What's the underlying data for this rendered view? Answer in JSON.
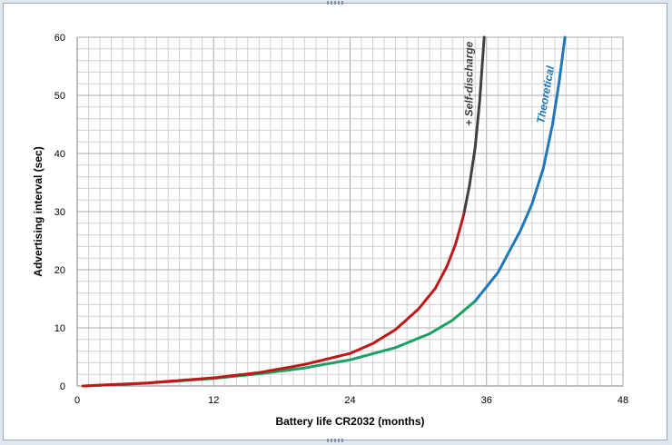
{
  "chart_data": {
    "type": "line",
    "title": "",
    "xlabel": "Battery life CR2032  (months)",
    "ylabel": "Advertising interval (sec)",
    "xlim": [
      0,
      48
    ],
    "ylim": [
      0,
      60
    ],
    "x_ticks": [
      "0",
      "12",
      "24",
      "36",
      "48"
    ],
    "y_ticks": [
      "0",
      "10",
      "20",
      "30",
      "40",
      "50",
      "60"
    ],
    "x_minor_step": 1,
    "y_minor_step": 2,
    "grid": true,
    "legend": "none",
    "colors": {
      "theoretical": "#1f78b8",
      "low": "#1aa060",
      "self_low": "#c01818",
      "self_high": "#404040",
      "grid_major": "#a8a8a8",
      "grid_minor": "#cfcfcf"
    },
    "series": [
      {
        "name": "Theoretical",
        "points": [
          [
            0.5,
            0
          ],
          [
            6,
            0.45
          ],
          [
            12,
            1.3
          ],
          [
            16,
            2.1
          ],
          [
            20,
            3.1
          ],
          [
            24,
            4.5
          ],
          [
            28,
            6.6
          ],
          [
            31,
            9.0
          ],
          [
            33,
            11.3
          ],
          [
            35,
            14.6
          ],
          [
            37,
            19.5
          ],
          [
            39,
            26.8
          ],
          [
            40,
            31.3
          ],
          [
            41,
            37.5
          ],
          [
            41.8,
            45
          ],
          [
            42.4,
            52.5
          ],
          [
            42.9,
            60
          ]
        ]
      },
      {
        "name": "+ Self-discharge",
        "points": [
          [
            0.5,
            0
          ],
          [
            6,
            0.5
          ],
          [
            12,
            1.4
          ],
          [
            16,
            2.3
          ],
          [
            20,
            3.7
          ],
          [
            24,
            5.6
          ],
          [
            26,
            7.3
          ],
          [
            28,
            9.7
          ],
          [
            30,
            13.2
          ],
          [
            31.5,
            16.8
          ],
          [
            32.5,
            20.5
          ],
          [
            33.3,
            24.5
          ],
          [
            34,
            29.5
          ],
          [
            34.5,
            34.5
          ],
          [
            35,
            41
          ],
          [
            35.4,
            49
          ],
          [
            35.8,
            60
          ]
        ]
      }
    ],
    "annotations": [
      {
        "text": "+ Self-discharge",
        "x": 34.8,
        "y": 52
      },
      {
        "text": "Theoretical",
        "x": 41.5,
        "y": 50
      }
    ]
  }
}
